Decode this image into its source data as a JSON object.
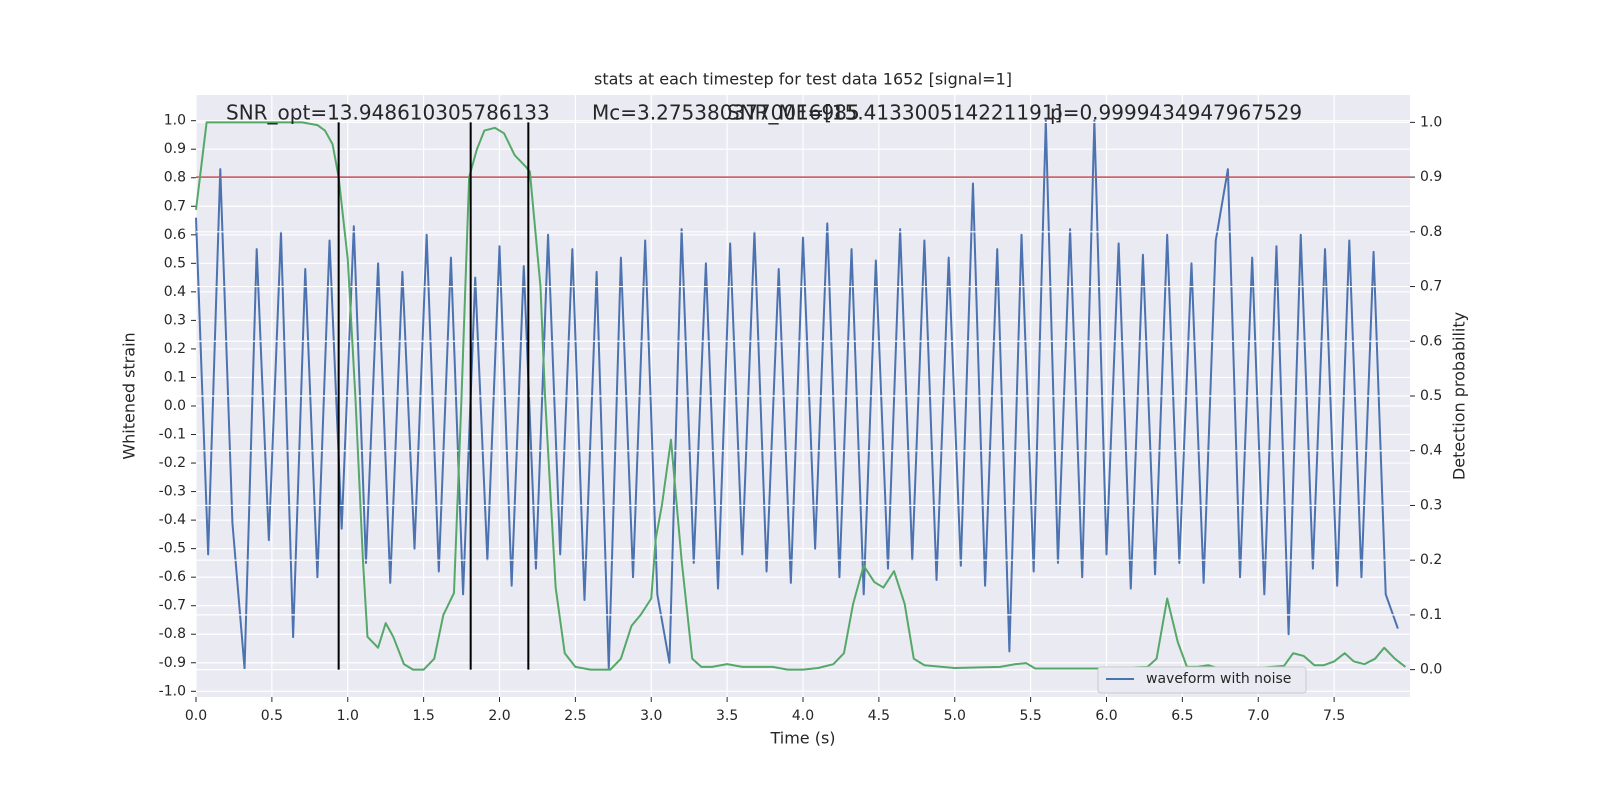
{
  "chart_data": {
    "type": "line",
    "title": "stats at each timestep for test data 1652 [signal=1]",
    "x_label": "Time (s)",
    "y_label": "Whitened strain",
    "y2_label": "Detection probability",
    "annotations": [
      "SNR_opt=13.948610305786133",
      "Mc=3.2753803770016985",
      "SNR_MF=[15.413300514221191]",
      "p=0.9999434947967529"
    ],
    "xlim": [
      0,
      8.0
    ],
    "ylim": [
      -1.02,
      1.09
    ],
    "y2lim": [
      -0.05,
      1.05
    ],
    "xticks": [
      {
        "value": 0,
        "label": "0.0"
      },
      0.5,
      {
        "value": 1,
        "label": "1.0"
      },
      1.5,
      {
        "value": 2,
        "label": "2.0"
      },
      2.5,
      {
        "value": 3,
        "label": "3.0"
      },
      3.5,
      {
        "value": 4,
        "label": "4.0"
      },
      4.5,
      {
        "value": 5,
        "label": "5.0"
      },
      5.5,
      {
        "value": 6,
        "label": "6.0"
      },
      6.5,
      {
        "value": 7,
        "label": "7.0"
      },
      7.5
    ],
    "yticks": [
      {
        "value": -1,
        "label": "-1.0"
      },
      -0.9,
      -0.8,
      -0.7,
      -0.6,
      -0.5,
      -0.4,
      -0.3,
      -0.2,
      -0.1,
      {
        "value": 0,
        "label": "0.0"
      },
      0.1,
      0.2,
      0.3,
      0.4,
      0.5,
      0.6,
      0.7,
      0.8,
      0.9,
      {
        "value": 1,
        "label": "1.0"
      }
    ],
    "y2ticks": [
      {
        "value": 0,
        "label": "0.0"
      },
      0.1,
      0.2,
      0.3,
      0.4,
      0.5,
      0.6,
      0.7,
      0.8,
      0.9,
      {
        "value": 1,
        "label": "1.0"
      }
    ],
    "grid": true,
    "legend": "lower right",
    "series": [
      {
        "name": "waveform with noise",
        "color": "#4c72b0",
        "x": [
          0,
          0.08,
          0.16,
          0.24,
          0.32,
          0.4,
          0.48,
          0.56,
          0.64,
          0.72,
          0.8,
          0.88,
          0.96,
          1.04,
          1.12,
          1.2,
          1.28,
          1.36,
          1.44,
          1.52,
          1.6,
          1.68,
          1.76,
          1.84,
          1.92,
          2,
          2.08,
          2.16,
          2.24,
          2.32,
          2.4,
          2.48,
          2.56,
          2.64,
          2.72,
          2.8,
          2.88,
          2.96,
          3.04,
          3.12,
          3.2,
          3.28,
          3.36,
          3.44,
          3.52,
          3.6,
          3.68,
          3.76,
          3.84,
          3.92,
          4,
          4.08,
          4.16,
          4.24,
          4.32,
          4.4,
          4.48,
          4.56,
          4.64,
          4.72,
          4.8,
          4.88,
          4.96,
          5.04,
          5.12,
          5.2,
          5.28,
          5.36,
          5.44,
          5.52,
          5.6,
          5.68,
          5.76,
          5.84,
          5.92,
          6,
          6.08,
          6.16,
          6.24,
          6.32,
          6.4,
          6.48,
          6.56,
          6.64,
          6.72,
          6.8,
          6.88,
          6.96,
          7.04,
          7.12,
          7.2,
          7.28,
          7.36,
          7.44,
          7.52,
          7.6,
          7.68,
          7.76,
          7.84,
          7.92
        ],
        "values": [
          0.66,
          -0.52,
          0.83,
          -0.41,
          -0.92,
          0.55,
          -0.47,
          0.61,
          -0.81,
          0.48,
          -0.6,
          0.58,
          -0.43,
          0.63,
          -0.55,
          0.5,
          -0.62,
          0.47,
          -0.5,
          0.6,
          -0.58,
          0.52,
          -0.66,
          0.45,
          -0.54,
          0.56,
          -0.63,
          0.49,
          -0.57,
          0.6,
          -0.52,
          0.55,
          -0.68,
          0.47,
          -0.92,
          0.52,
          -0.6,
          0.58,
          -0.66,
          -0.9,
          0.62,
          -0.55,
          0.5,
          -0.64,
          0.57,
          -0.52,
          0.61,
          -0.58,
          0.48,
          -0.62,
          0.59,
          -0.5,
          0.64,
          -0.6,
          0.55,
          -0.66,
          0.51,
          -0.57,
          0.62,
          -0.54,
          0.58,
          -0.61,
          0.52,
          -0.56,
          0.78,
          -0.63,
          0.55,
          -0.86,
          0.6,
          -0.58,
          1.0,
          -0.55,
          0.62,
          -0.6,
          1.0,
          -0.52,
          0.57,
          -0.64,
          0.53,
          -0.59,
          0.6,
          -0.55,
          0.5,
          -0.62,
          0.58,
          0.83,
          -0.6,
          0.52,
          -0.66,
          0.56,
          -0.8,
          0.6,
          -0.57,
          0.55,
          -0.63,
          0.58,
          -0.6,
          0.54,
          -0.66,
          -0.78
        ]
      },
      {
        "color": "#55a868",
        "axis": "y2",
        "x": [
          0,
          0.07,
          0.15,
          0.3,
          0.5,
          0.7,
          0.8,
          0.85,
          0.9,
          0.94,
          1.0,
          1.05,
          1.1,
          1.13,
          1.2,
          1.25,
          1.3,
          1.37,
          1.43,
          1.5,
          1.57,
          1.63,
          1.7,
          1.75,
          1.8,
          1.85,
          1.9,
          1.97,
          2.03,
          2.1,
          2.17,
          2.2,
          2.27,
          2.3,
          2.37,
          2.43,
          2.5,
          2.6,
          2.73,
          2.8,
          2.87,
          2.93,
          3.0,
          3.03,
          3.07,
          3.13,
          3.2,
          3.27,
          3.33,
          3.4,
          3.5,
          3.6,
          3.8,
          3.9,
          4.0,
          4.1,
          4.2,
          4.27,
          4.33,
          4.4,
          4.47,
          4.53,
          4.6,
          4.67,
          4.73,
          4.8,
          5.0,
          5.3,
          5.4,
          5.47,
          5.53,
          6.0,
          6.27,
          6.33,
          6.4,
          6.47,
          6.53,
          6.6,
          6.67,
          6.73,
          7.0,
          7.17,
          7.23,
          7.3,
          7.37,
          7.43,
          7.5,
          7.57,
          7.63,
          7.7,
          7.77,
          7.83,
          7.9,
          7.97
        ],
        "values": [
          0.84,
          1.0,
          1.0,
          1.0,
          1.0,
          1.0,
          0.995,
          0.985,
          0.96,
          0.9,
          0.75,
          0.5,
          0.2,
          0.06,
          0.04,
          0.085,
          0.06,
          0.01,
          0.0,
          0.0,
          0.02,
          0.1,
          0.14,
          0.5,
          0.9,
          0.95,
          0.985,
          0.99,
          0.98,
          0.94,
          0.92,
          0.91,
          0.7,
          0.5,
          0.15,
          0.03,
          0.005,
          0.0,
          0.0,
          0.02,
          0.08,
          0.1,
          0.13,
          0.24,
          0.3,
          0.42,
          0.2,
          0.02,
          0.005,
          0.005,
          0.01,
          0.005,
          0.005,
          0.0,
          0.0,
          0.003,
          0.01,
          0.03,
          0.12,
          0.19,
          0.16,
          0.15,
          0.18,
          0.12,
          0.02,
          0.008,
          0.003,
          0.005,
          0.01,
          0.012,
          0.002,
          0.002,
          0.005,
          0.02,
          0.13,
          0.05,
          0.005,
          0.005,
          0.008,
          0.003,
          0.003,
          0.007,
          0.03,
          0.025,
          0.008,
          0.008,
          0.015,
          0.03,
          0.015,
          0.01,
          0.02,
          0.04,
          0.02,
          0.005
        ]
      }
    ],
    "hline": {
      "value": 0.9,
      "axis": "y2",
      "color": "#c44e52"
    },
    "vlines": [
      0.94,
      1.81,
      2.19
    ],
    "vline_span": [
      0,
      1
    ],
    "vline_color": "#000000"
  }
}
